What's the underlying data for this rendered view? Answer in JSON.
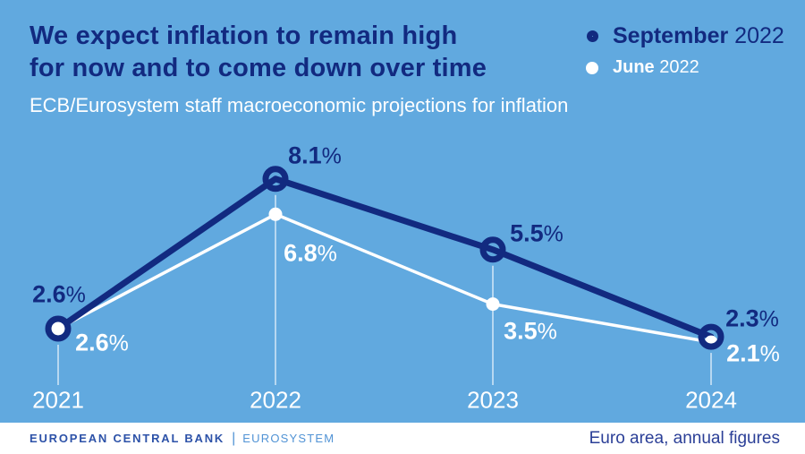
{
  "header": {
    "title_line1": "We expect inflation to remain high",
    "title_line2": "for now and to come down over time",
    "subtitle": "ECB/Eurosystem staff macroeconomic projections for inflation"
  },
  "legend": {
    "series1": {
      "label_bold": "September",
      "label_year": "2022"
    },
    "series2": {
      "label_bold": "June",
      "label_year": "2022"
    }
  },
  "chart_data": {
    "type": "line",
    "title": "ECB/Eurosystem staff macroeconomic projections for inflation",
    "categories": [
      "2021",
      "2022",
      "2023",
      "2024"
    ],
    "series": [
      {
        "name": "September 2022",
        "values": [
          2.6,
          8.1,
          5.5,
          2.3
        ],
        "labels": [
          "2.6%",
          "8.1%",
          "5.5%",
          "2.3%"
        ],
        "color": "#122a80",
        "marker": "open-ring"
      },
      {
        "name": "June 2022",
        "values": [
          2.6,
          6.8,
          3.5,
          2.1
        ],
        "labels": [
          "2.6%",
          "6.8%",
          "3.5%",
          "2.1%"
        ],
        "color": "#ffffff",
        "marker": "filled-dot"
      }
    ],
    "xlabel": "",
    "ylabel": "",
    "unit": "%",
    "ylim": [
      0,
      10
    ],
    "grid": false,
    "legend_position": "top-right"
  },
  "footer": {
    "org": "EUROPEAN CENTRAL BANK",
    "separator": "|",
    "system": "EUROSYSTEM",
    "note": "Euro area, annual figures"
  },
  "colors": {
    "bg": "#61a9df",
    "navy": "#122a80",
    "white": "#ffffff",
    "ecb-blue": "#2d52a8",
    "eurosys-blue": "#5193d5",
    "note-blue": "#2b3f97"
  }
}
